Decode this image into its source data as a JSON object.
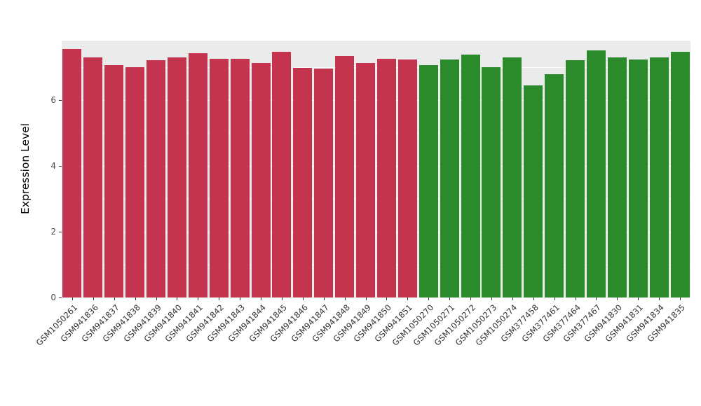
{
  "chart_data": {
    "type": "bar",
    "title": "",
    "xlabel": "",
    "ylabel": "Expression Level",
    "ylim": [
      0,
      7.8
    ],
    "yticks": [
      0,
      2,
      4,
      6
    ],
    "minor_gridlines": [
      1,
      3,
      5,
      7
    ],
    "grid": true,
    "legend": "none",
    "panel_background": "#EBEBEB",
    "group_colors": {
      "red_group": "#C5344E",
      "green_group": "#2B8A2B"
    },
    "categories": [
      "GSM1050261",
      "GSM941836",
      "GSM941837",
      "GSM941838",
      "GSM941839",
      "GSM941840",
      "GSM941841",
      "GSM941842",
      "GSM941843",
      "GSM941844",
      "GSM941845",
      "GSM941846",
      "GSM941847",
      "GSM941848",
      "GSM941849",
      "GSM941850",
      "GSM941851",
      "GSM1050270",
      "GSM1050271",
      "GSM1050272",
      "GSM1050273",
      "GSM1050274",
      "GSM377458",
      "GSM377461",
      "GSM377464",
      "GSM377467",
      "GSM941830",
      "GSM941831",
      "GSM941834",
      "GSM941835"
    ],
    "values": [
      7.55,
      7.28,
      7.05,
      7.0,
      7.2,
      7.3,
      7.42,
      7.25,
      7.25,
      7.12,
      7.45,
      6.98,
      6.95,
      7.33,
      7.12,
      7.25,
      7.22,
      7.05,
      7.22,
      7.38,
      7.0,
      7.3,
      6.45,
      6.78,
      7.2,
      7.5,
      7.28,
      7.22,
      7.28,
      7.45
    ],
    "groups": [
      "red_group",
      "red_group",
      "red_group",
      "red_group",
      "red_group",
      "red_group",
      "red_group",
      "red_group",
      "red_group",
      "red_group",
      "red_group",
      "red_group",
      "red_group",
      "red_group",
      "red_group",
      "red_group",
      "red_group",
      "green_group",
      "green_group",
      "green_group",
      "green_group",
      "green_group",
      "green_group",
      "green_group",
      "green_group",
      "green_group",
      "green_group",
      "green_group",
      "green_group",
      "green_group"
    ]
  }
}
